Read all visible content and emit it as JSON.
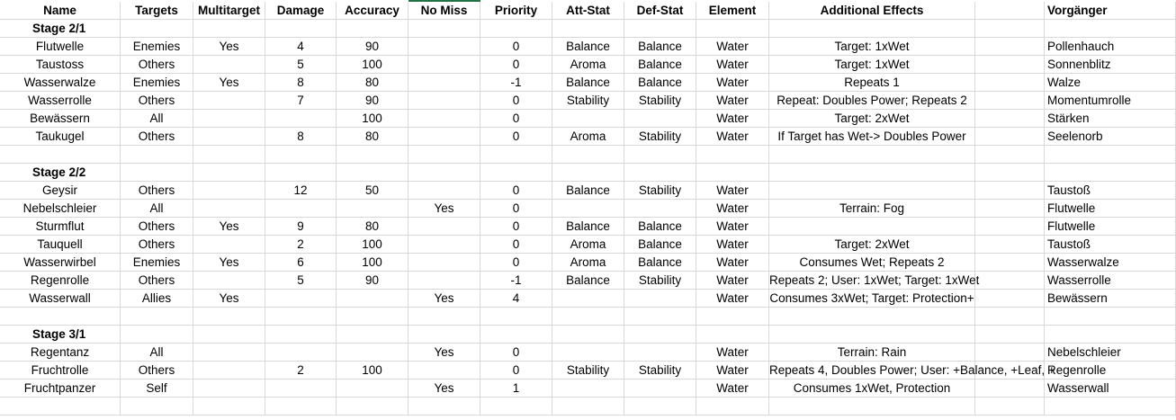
{
  "columns": [
    "Name",
    "Targets",
    "Multitarget",
    "Damage",
    "Accuracy",
    "No Miss",
    "Priority",
    "Att-Stat",
    "Def-Stat",
    "Element",
    "",
    "Additional Effects",
    "Vorgänger",
    ""
  ],
  "rows": [
    {
      "kind": "section",
      "label": "Stage 2/1"
    },
    {
      "kind": "data",
      "cells": [
        "Flutwelle",
        "Enemies",
        "Yes",
        "4",
        "90",
        "",
        "0",
        "Balance",
        "Balance",
        "Water",
        "",
        "Target: 1xWet",
        "Pollenhauch",
        ""
      ]
    },
    {
      "kind": "data",
      "cells": [
        "Taustoss",
        "Others",
        "",
        "5",
        "100",
        "",
        "0",
        "Aroma",
        "Balance",
        "Water",
        "",
        "Target: 1xWet",
        "Sonnenblitz",
        ""
      ]
    },
    {
      "kind": "data",
      "cells": [
        "Wasserwalze",
        "Enemies",
        "Yes",
        "8",
        "80",
        "",
        "-1",
        "Balance",
        "Balance",
        "Water",
        "",
        "Repeats 1",
        "Walze",
        ""
      ]
    },
    {
      "kind": "data",
      "cells": [
        "Wasserrolle",
        "Others",
        "",
        "7",
        "90",
        "",
        "0",
        "Stability",
        "Stability",
        "Water",
        "",
        "Repeat: Doubles Power; Repeats 2",
        "Momentumrolle",
        ""
      ]
    },
    {
      "kind": "data",
      "cells": [
        "Bewässern",
        "All",
        "",
        "",
        "100",
        "",
        "0",
        "",
        "",
        "Water",
        "",
        "Target: 2xWet",
        "Stärken",
        ""
      ]
    },
    {
      "kind": "data",
      "cells": [
        "Taukugel",
        "Others",
        "",
        "8",
        "80",
        "",
        "0",
        "Aroma",
        "Stability",
        "Water",
        "",
        "If Target has Wet-> Doubles Power",
        "Seelenorb",
        ""
      ]
    },
    {
      "kind": "blank"
    },
    {
      "kind": "section",
      "label": "Stage 2/2"
    },
    {
      "kind": "data",
      "cells": [
        "Geysir",
        "Others",
        "",
        "12",
        "50",
        "",
        "0",
        "Balance",
        "Stability",
        "Water",
        "",
        "",
        "Taustoß",
        ""
      ]
    },
    {
      "kind": "data",
      "cells": [
        "Nebelschleier",
        "All",
        "",
        "",
        "",
        "Yes",
        "0",
        "",
        "",
        "Water",
        "",
        "Terrain: Fog",
        "Flutwelle",
        ""
      ]
    },
    {
      "kind": "data",
      "cells": [
        "Sturmflut",
        "Others",
        "Yes",
        "9",
        "80",
        "",
        "0",
        "Balance",
        "Balance",
        "Water",
        "",
        "",
        "Flutwelle",
        ""
      ]
    },
    {
      "kind": "data",
      "cells": [
        "Tauquell",
        "Others",
        "",
        "2",
        "100",
        "",
        "0",
        "Aroma",
        "Balance",
        "Water",
        "",
        "Target: 2xWet",
        "Taustoß",
        ""
      ]
    },
    {
      "kind": "data",
      "cells": [
        "Wasserwirbel",
        "Enemies",
        "Yes",
        "6",
        "100",
        "",
        "0",
        "Aroma",
        "Balance",
        "Water",
        "",
        "Consumes Wet; Repeats 2",
        "Wasserwalze",
        ""
      ]
    },
    {
      "kind": "data",
      "cells": [
        "Regenrolle",
        "Others",
        "",
        "5",
        "90",
        "",
        "-1",
        "Balance",
        "Stability",
        "Water",
        "",
        "Repeats 2; User: 1xWet; Target: 1xWet",
        "Wasserrolle",
        ""
      ]
    },
    {
      "kind": "data",
      "cells": [
        "Wasserwall",
        "Allies",
        "Yes",
        "",
        "",
        "Yes",
        "4",
        "",
        "",
        "Water",
        "",
        "Consumes 3xWet; Target: Protection+",
        "Bewässern",
        ""
      ]
    },
    {
      "kind": "blank"
    },
    {
      "kind": "section",
      "label": "Stage 3/1"
    },
    {
      "kind": "data",
      "cells": [
        "Regentanz",
        "All",
        "",
        "",
        "",
        "Yes",
        "0",
        "",
        "",
        "Water",
        "",
        "Terrain: Rain",
        "Nebelschleier",
        ""
      ]
    },
    {
      "kind": "data",
      "cells": [
        "Fruchtrolle",
        "Others",
        "",
        "2",
        "100",
        "",
        "0",
        "Stability",
        "Stability",
        "Water",
        "",
        "Repeats 4, Doubles Power; User: +Balance, +Leaf, +",
        "Regenrolle",
        ""
      ]
    },
    {
      "kind": "data",
      "cells": [
        "Fruchtpanzer",
        "Self",
        "",
        "",
        "",
        "Yes",
        "1",
        "",
        "",
        "Water",
        "",
        "Consumes 1xWet, Protection",
        "Wasserwall",
        ""
      ]
    },
    {
      "kind": "blank"
    }
  ]
}
